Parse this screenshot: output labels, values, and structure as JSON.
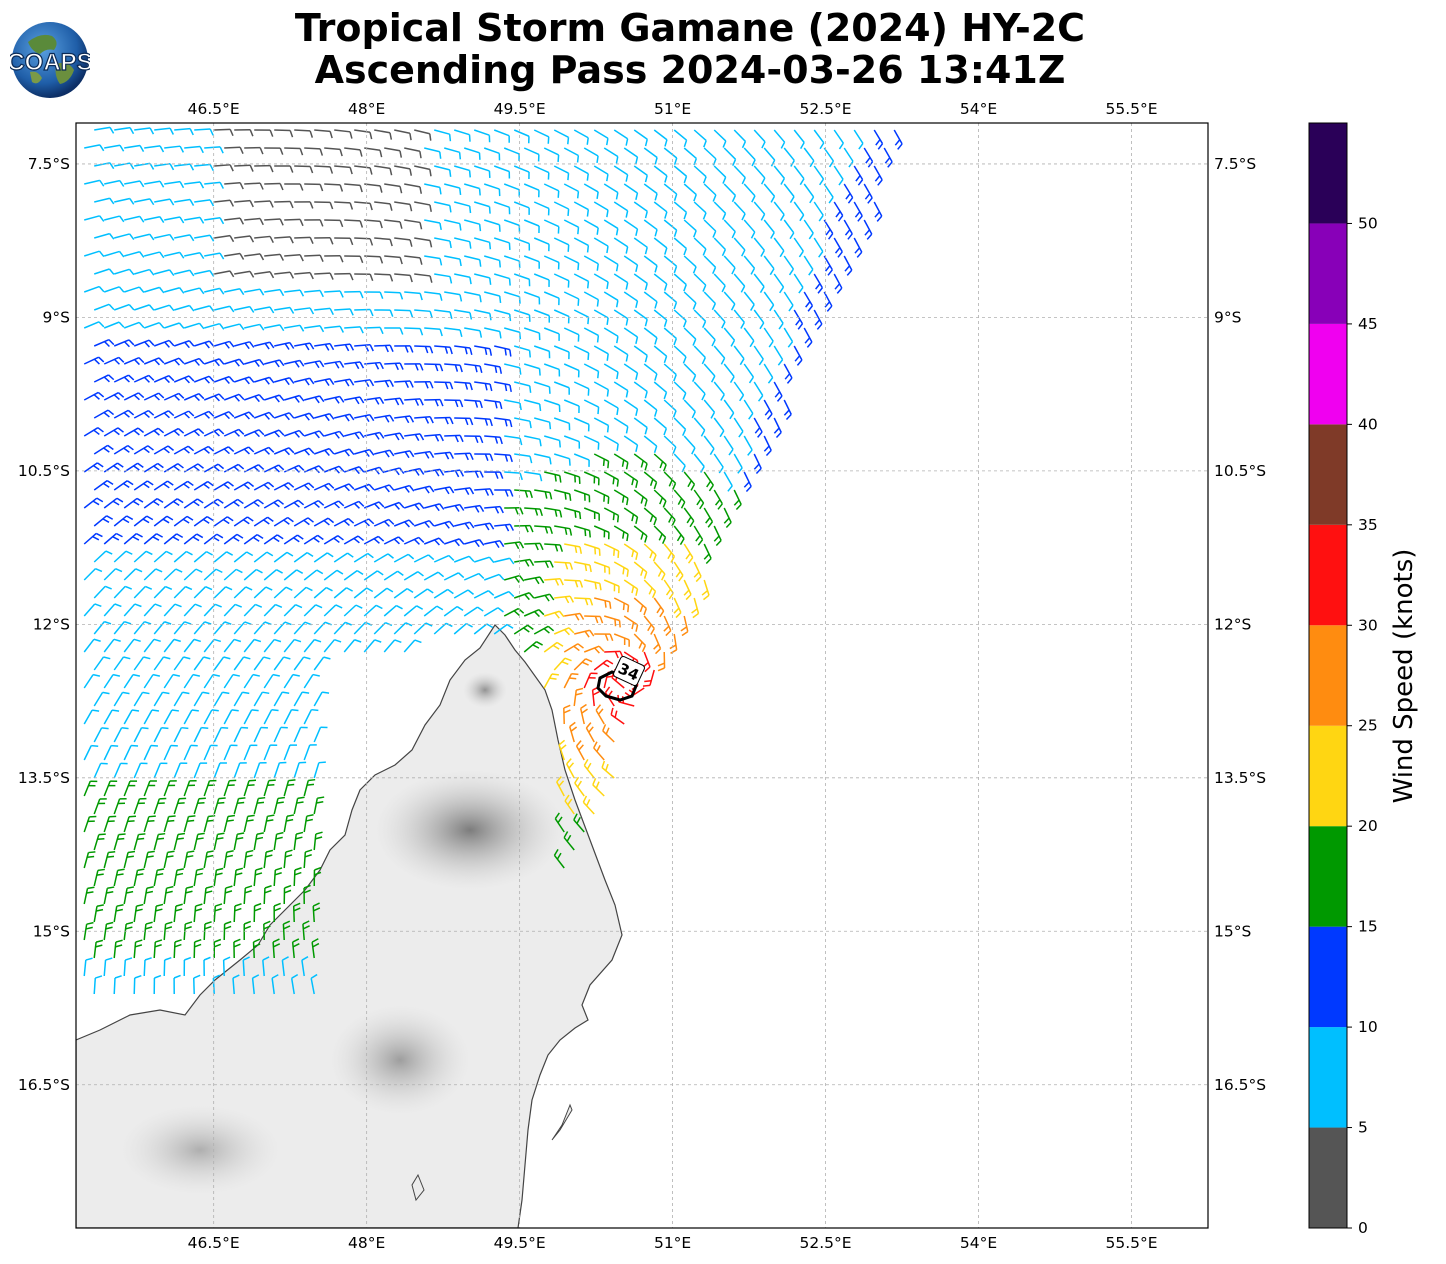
{
  "header": {
    "title_line1": "Tropical Storm Gamane (2024) HY-2C",
    "title_line2": "Ascending Pass 2024-03-26 13:41Z",
    "logo_text": "COAPS"
  },
  "map": {
    "lon_range": [
      45.15,
      56.25
    ],
    "lat_range": [
      -17.9,
      -7.1
    ],
    "lon_ticks": [
      "46.5°E",
      "48°E",
      "49.5°E",
      "51°E",
      "52.5°E",
      "54°E",
      "55.5°E"
    ],
    "lat_ticks": [
      "7.5°S",
      "9°S",
      "10.5°S",
      "12°S",
      "13.5°S",
      "15°S",
      "16.5°S"
    ],
    "grid": true,
    "land_shading": "gray terrain",
    "storm_center_label": "34",
    "wind_barb_colors": [
      "#555555",
      "#00bfff",
      "#0039ff",
      "#009900",
      "#ffd612",
      "#ff8c10",
      "#ff1010",
      "#7f3a28"
    ]
  },
  "colorbar": {
    "label": "Wind Speed (knots)",
    "ticks": [
      "0",
      "5",
      "10",
      "15",
      "20",
      "25",
      "30",
      "35",
      "40",
      "45",
      "50"
    ],
    "bins": [
      {
        "min": 0,
        "max": 5,
        "color": "#555555"
      },
      {
        "min": 5,
        "max": 10,
        "color": "#00bfff"
      },
      {
        "min": 10,
        "max": 15,
        "color": "#0039ff"
      },
      {
        "min": 15,
        "max": 20,
        "color": "#009900"
      },
      {
        "min": 20,
        "max": 25,
        "color": "#ffd612"
      },
      {
        "min": 25,
        "max": 30,
        "color": "#ff8c10"
      },
      {
        "min": 30,
        "max": 35,
        "color": "#ff1010"
      },
      {
        "min": 35,
        "max": 40,
        "color": "#7f3a28"
      },
      {
        "min": 40,
        "max": 45,
        "color": "#f000f0"
      },
      {
        "min": 45,
        "max": 50,
        "color": "#8800b8"
      },
      {
        "min": 50,
        "max": 55,
        "color": "#2a0058"
      }
    ]
  }
}
